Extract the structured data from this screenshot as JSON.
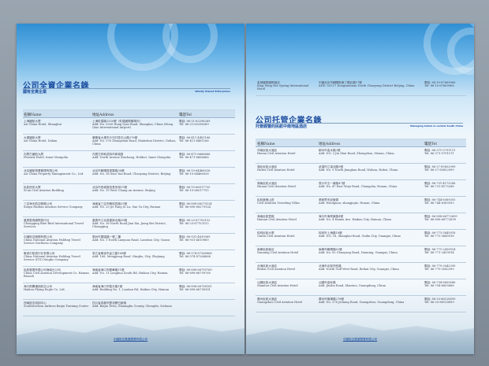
{
  "left_page": {
    "title": "公司全資企業名錄",
    "subtitle": "國有全資企業",
    "english_tag": "Wholly Owned Enterprises",
    "columns": {
      "name": "名稱Name",
      "address": "地址Address",
      "phone": "電話Tel"
    },
    "rows": [
      {
        "name_cn": "上海國航大廈",
        "name_en": "Air China Hotel, Shanghai",
        "addr_cn": "上海虹橋路2550號（虹橋國際機場內）",
        "addr_en": "Add: No. 2550 Hong Qiao Road, Shanghai, China (Hong Qiao International Airport)",
        "tel_cn": "電話: 86-21-63296269",
        "tel_en": "Tel: 86-21-63296269"
      },
      {
        "name_cn": "大連國航大廈",
        "name_en": "Air China Hotel, Dalian",
        "addr_cn": "遼寧省大連市沙河口區中山路376號",
        "addr_en": "Add: No. 376 Zhongshan Road, Shahekou District, Dalian, China",
        "tel_cn": "電話: 86-411-4481166",
        "tel_en": "Tel: 86-411-4481166"
      },
      {
        "name_cn": "內蒙古國航大廈",
        "name_en": "Phoenix Hotel, Inner Mongolia",
        "addr_cn": "內蒙古呼和浩特市新城區",
        "addr_en": "Add: North Avenue Xinchang, Hohhot, Inner Mongolia",
        "tel_cn": "電話: 86-471-6666666",
        "tel_en": "Tel: 86-471-6666666"
      },
      {
        "name_cn": "北京國航物業管理有限公司",
        "name_en": "Air China Property Management Co., Ltd.",
        "addr_cn": "北京市朝陽區霄雲路36號",
        "addr_en": "Add: No. 36 Xiao Yun Road, Chaoyang District, Beijing",
        "tel_cn": "電話: 86-10-64466926",
        "tel_en": "Tel: 86-10-64466926"
      },
      {
        "name_cn": "民航西安大廈",
        "name_en": "Xi'an Civil Aviation Building",
        "addr_cn": "北京市西城區西長安街15號",
        "addr_en": "Add: No. 15 West Chang an Avenue, Beijing",
        "tel_cn": "電話: 86-10-66017755",
        "tel_en": "Tel: 86-10-66017755"
      },
      {
        "name_cn": "三亞海天航空服務公司",
        "name_en": "Sanya Haitian Aviation Service Company",
        "addr_cn": "海南省三亞市解放四路25號",
        "addr_en": "Add: No. 25 Jie Fang Si Lu, San Ya City, Hainan",
        "tel_cn": "電話: 86-898-88279124",
        "tel_en": "Tel: 86-898-88279124"
      },
      {
        "name_cn": "重慶藍鳥國際旅行社",
        "name_en": "Chongqing Blue Bird International Travel Services",
        "addr_cn": "重慶市江北區建新北路36號",
        "addr_en": "Add: No. 36 North Road Jian Xin, Jiang Bei District, Chongqing",
        "tel_cn": "電話: 86-23-67703152",
        "tel_en": "Tel: 86-23-67703152"
      },
      {
        "name_cn": "中國航空服務有限公司",
        "name_en": "China National Aviation Holding Travel Service Northern Company",
        "addr_cn": "蘭州市蘭園路一號二樓",
        "addr_en": "Add: No. 1 North Lanyuan Road, Lanzhou City, Gansu",
        "tel_cn": "電話: 86-931-4610969",
        "tel_en": "Tel: 86-931-4610969"
      },
      {
        "name_cn": "寧波中航旅行社有限公司",
        "name_en": "China National Aviation Holding Travel Service (ITS) Ningbo Company",
        "addr_cn": "浙江省寧波市孟江路168號",
        "addr_en": "Add: 168, Mengjiang Road, Ningbo, City, Zhejiang",
        "tel_cn": "電話: 86-574-87268868",
        "tel_en": "Tel: 86-574-87268868"
      },
      {
        "name_cn": "民航發展有限公司海南分公司",
        "name_en": "China Civil Aviation Development Co. Hainan Branch",
        "addr_cn": "海南省海口市龍華路11號",
        "addr_en": "Add: No. 11 Longhua South Rd, Haikou City, Hainan",
        "tel_cn": "電話: 86-898-66799769",
        "tel_en": "Tel: 86-898-66799769"
      },
      {
        "name_cn": "海口飛鷹通用航空公司",
        "name_en": "Haikou Flying Eagle Co. Ltd.",
        "addr_cn": "海南省海口市藍天路1號",
        "addr_en": "Add: Building No. 1, Lantian Rd, Haikou City, Hainan",
        "tel_cn": "電話: 86-898-66798181",
        "tel_en": "Tel: 86-898-66798181"
      },
      {
        "name_cn": "西南航空培訓中心",
        "name_en": "Southwestern Airlines Baijia Training Center",
        "addr_cn": "四川省成都市雙流縣白家鎮",
        "addr_en": "Add: Baijia Town, Shuangliu County, Chengdu, Sichuan",
        "tel_cn": "",
        "tel_en": ""
      }
    ],
    "footer": "中國航空集團實業有限公司"
  },
  "right_page": {
    "top_row": {
      "name_cn": "金城國泰國際酒店",
      "name_en": "King Wing Hot Spring International Hotel",
      "addr_cn": "中國北京市朝陽區東三環北路17號",
      "addr_en": "ADD: NO.17 Dongsanhuan North Chaoyang District Beijing, China",
      "tel_cn": "電話: 86-10-67669966",
      "tel_en": "Tel: 86-10-67669966"
    },
    "title": "公司托管企業名錄",
    "subtitle": "托管經營的民航中南地區酒店",
    "english_tag": "Managing hotels in central South China",
    "columns": {
      "name": "名稱Name",
      "address": "地址Address",
      "phone": "電話Tel"
    },
    "rows": [
      {
        "name_cn": "河南民航大酒店",
        "name_en": "Henan Civil Aviation Hotel",
        "addr_cn": "鄭州市金水路3號",
        "addr_en": "Add: NO. 3 Jin Shui Road, Zhengzhou, Henan, China",
        "tel_cn": "電話: 86-371-5791111",
        "tel_en": "Tel: 86-371-5791111"
      },
      {
        "name_cn": "湖北民航大酒店",
        "name_en": "Hubei Civil Aviation Hotel",
        "addr_cn": "武漢市江漢北路9號",
        "addr_en": "Add: No. 9 North Jianghan Road, Wuhan, Hubei, China",
        "tel_cn": "電話: 86-27-85852999",
        "tel_en": "Tel: 86-27-85852999"
      },
      {
        "name_cn": "湖南民航大酒店",
        "name_en": "Hunan Civil Aviation Hotel",
        "addr_cn": "長沙市五一東路47號",
        "addr_en": "Add: No. 47 East Wuyi Road, Changsha, Hunan, China",
        "tel_cn": "電話: 86-731-4175288",
        "tel_en": "Tel: 86-731-4175288"
      },
      {
        "name_cn": "民航度假山莊",
        "name_en": "Civil Aviation Traveling Villas",
        "addr_cn": "張家界市武陵源",
        "addr_en": "Add: Wuulguan, zhangjiajie, Hunan, China",
        "tel_cn": "電話: 86-744-8389393",
        "tel_en": "Tel: 86-744-8389393"
      },
      {
        "name_cn": "海南民航賓館",
        "name_en": "Hainan Civil Aviation Hotel",
        "addr_cn": "海口市海秀東路4號",
        "addr_en": "Add: No. 4 Haixiu Ave, Haikou City, Hainan, China",
        "tel_cn": "電話: 86-898-66772699",
        "tel_en": "Tel: 86-898-66772699"
      },
      {
        "name_cn": "桂林民航大廈",
        "name_en": "Guilin Civil Aviation Hotel",
        "addr_cn": "桂林市上海路18號",
        "addr_en": "Add: NO. 18, Shanghai Road, Guilin City, Guangxi, China",
        "tel_cn": "電話: 86-773-3845918",
        "tel_en": "Tel: 86-773-3845918"
      },
      {
        "name_cn": "南寧民航飯店",
        "name_en": "Nanning Civil Aviation Hotel",
        "addr_cn": "南寧市朝陽路82號",
        "addr_en": "Add: No. 82 Chaoyang Road, Nanning, Guangxi, China",
        "tel_cn": "電話: 86-771-2439914",
        "tel_en": "Tel: 86-771-2439914"
      },
      {
        "name_cn": "北海民航大酒店",
        "name_en": "Beihai Civil Aviation Hotel",
        "addr_cn": "北海市北部灣西路",
        "addr_en": "Add: North Gulf West Road, Beihai City, Guangxi, China",
        "tel_cn": "電話: 86-779-3042399",
        "tel_en": "Tel: 86-779-3042399"
      },
      {
        "name_cn": "汕頭民航大酒店",
        "name_en": "Shantou Civil Aviation Hotel",
        "addr_cn": "汕頭市金砂路",
        "addr_en": "Add: Jinsha Road, Shantou, Guangdong, China",
        "tel_cn": "電話: 86-754-8855888",
        "tel_en": "Tel: 86-754-8855888"
      },
      {
        "name_cn": "廣州民航大酒店",
        "name_en": "Guangzhou Civil Aviation Hotel",
        "addr_cn": "廣州市機場路278號",
        "addr_en": "Add: No. 278 Jichang Road, Guangzhou, Guangdong, China",
        "tel_cn": "電話: 86-20-86128899",
        "tel_en": "Tel: 86-20-86128899"
      }
    ],
    "footer": "中國航空集團實業有限公司"
  }
}
